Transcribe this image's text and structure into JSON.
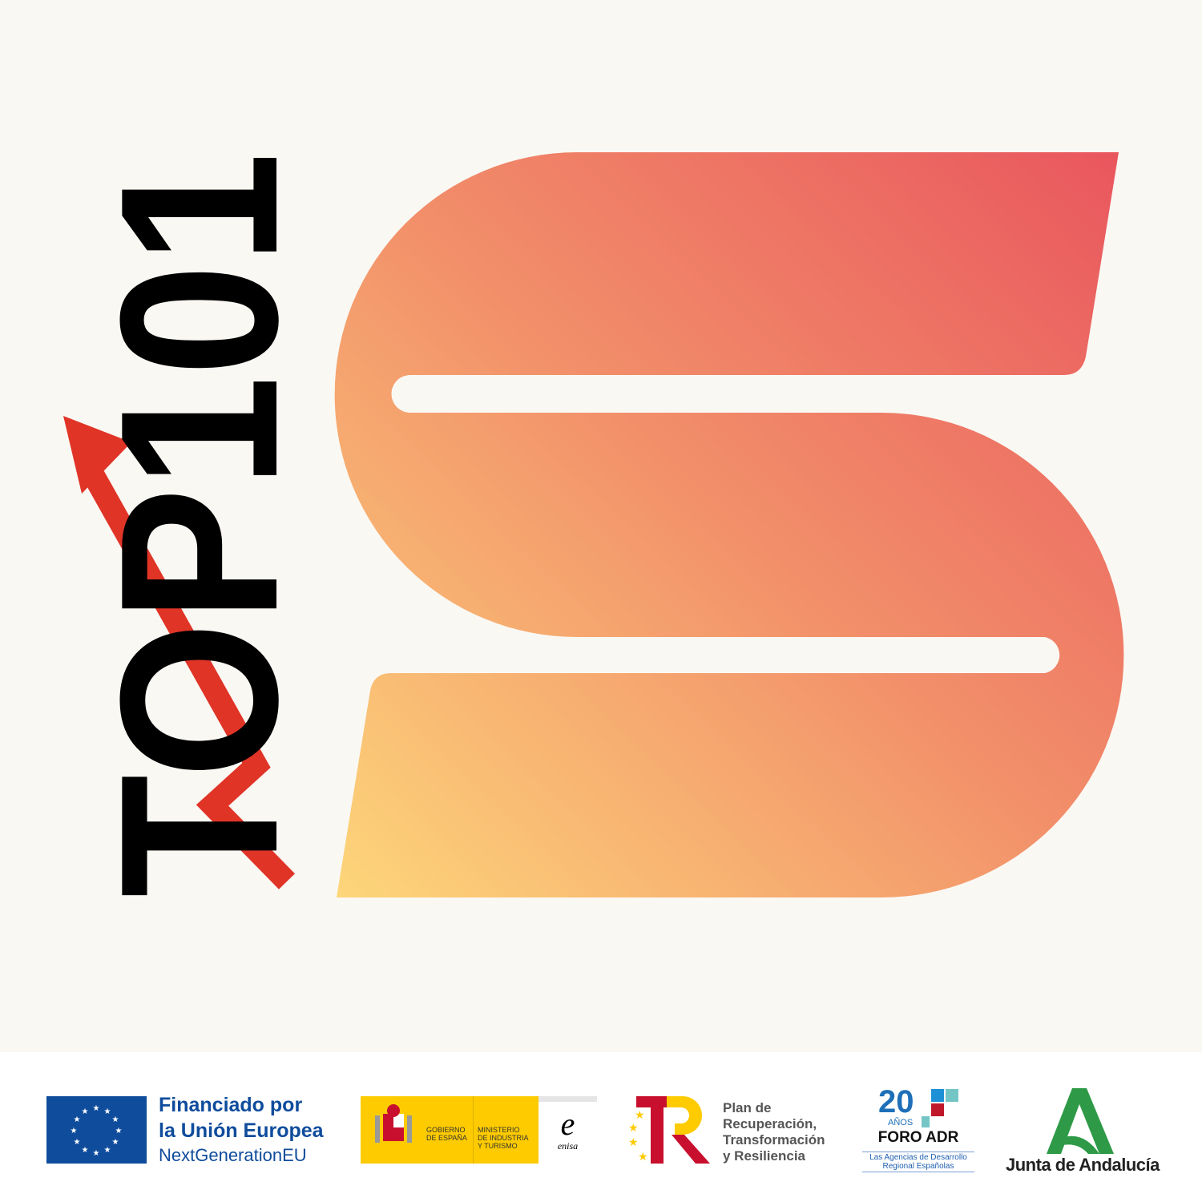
{
  "poster": {
    "title_text": "TOP101",
    "colors": {
      "background": "#FAF8F3",
      "title": "#000000",
      "arrow": "#E03427",
      "shape_top_right": "#E9565E",
      "shape_mid": "#F2906A",
      "shape_bottom_left": "#FDD67A"
    },
    "icons": [
      "rising-arrow-icon",
      "s-shape-logo"
    ]
  },
  "footer": {
    "eu": {
      "line1": "Financiado por",
      "line2": "la Unión Europea",
      "line3": "NextGenerationEU",
      "color": "#0F4C9C"
    },
    "gobierno": {
      "line1": "GOBIERNO",
      "line2": "DE ESPAÑA",
      "ministry1": "MINISTERIO",
      "ministry2": "DE INDUSTRIA",
      "ministry3": "Y TURISMO",
      "color": "#FDCB00"
    },
    "enisa": {
      "mark": "e",
      "name": "enisa"
    },
    "prtr": {
      "line1": "Plan de",
      "line2": "Recuperación,",
      "line3": "Transformación",
      "line4": "y Resiliencia"
    },
    "foro": {
      "number": "20",
      "anos": "AÑOS",
      "name": "FORO ADR",
      "sub1": "Las Agencias de Desarrollo",
      "sub2": "Regional Españolas"
    },
    "junta": {
      "name": "Junta de Andalucía",
      "color": "#2E9A47"
    }
  }
}
